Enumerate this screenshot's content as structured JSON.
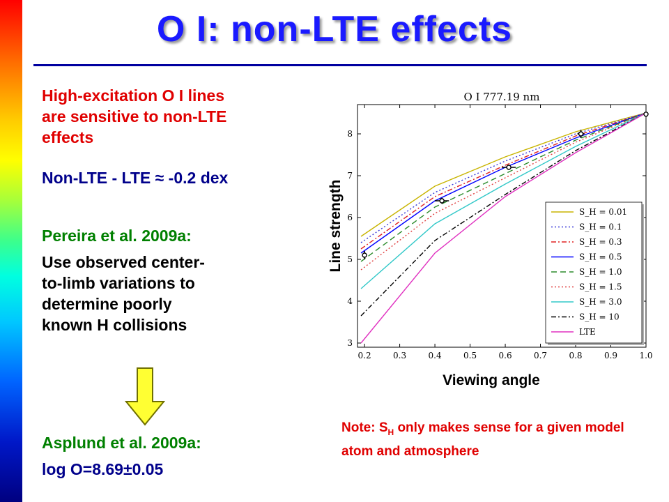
{
  "slide": {
    "title": "O I: non-LTE effects",
    "para1_lines": [
      "High-excitation O I lines",
      "are sensitive to non-LTE",
      "effects"
    ],
    "para1_result": "Non-LTE - LTE ≈ -0.2 dex",
    "ref1": "Pereira et al. 2009a:",
    "para2_lines": [
      "Use observed center-",
      "to-limb variations to",
      "determine poorly",
      "known H collisions"
    ],
    "ref2": "Asplund et al. 2009a:",
    "result": "log O=8.69±0.05",
    "note_prefix": "Note: S",
    "note_sub": "H",
    "note_rest": " only makes sense for a given model atom and atmosphere",
    "colors": {
      "title": "#1a1aff",
      "red_text": "#e00000",
      "blue_text": "#00008b",
      "green_text": "#008000",
      "arrow_fill": "#ffff33"
    }
  },
  "chart_data": {
    "type": "line",
    "title": "O I 777.19 nm",
    "xlabel": "Viewing angle",
    "ylabel": "Line strength",
    "xlim": [
      0.18,
      1.0
    ],
    "ylim": [
      2.9,
      8.7
    ],
    "xticks": [
      "0.2",
      "0.3",
      "0.4",
      "0.5",
      "0.6",
      "0.7",
      "0.8",
      "0.9",
      "1.0"
    ],
    "yticks": [
      "3",
      "4",
      "5",
      "6",
      "7",
      "8"
    ],
    "x": [
      0.19,
      0.4,
      0.6,
      0.8,
      1.0
    ],
    "series": [
      {
        "name": "S_H = 0.01",
        "color": "#c8b400",
        "dash": "solid",
        "values": [
          5.55,
          6.75,
          7.45,
          8.05,
          8.5
        ]
      },
      {
        "name": "S_H = 0.1",
        "color": "#3a3ad8",
        "dash": "dotted",
        "values": [
          5.4,
          6.6,
          7.35,
          8.0,
          8.5
        ]
      },
      {
        "name": "S_H = 0.3",
        "color": "#e02020",
        "dash": "dashdot",
        "values": [
          5.25,
          6.5,
          7.25,
          7.95,
          8.5
        ]
      },
      {
        "name": "S_H = 0.5",
        "color": "#0000ff",
        "dash": "solid",
        "values": [
          5.15,
          6.4,
          7.2,
          7.9,
          8.5
        ]
      },
      {
        "name": "S_H = 1.0",
        "color": "#2a8a2a",
        "dash": "dashed",
        "values": [
          4.95,
          6.25,
          7.05,
          7.85,
          8.5
        ]
      },
      {
        "name": "S_H = 1.5",
        "color": "#e04040",
        "dash": "dotted",
        "values": [
          4.75,
          6.1,
          6.95,
          7.8,
          8.5
        ]
      },
      {
        "name": "S_H = 3.0",
        "color": "#30c8c8",
        "dash": "solid",
        "values": [
          4.3,
          5.85,
          6.8,
          7.7,
          8.5
        ]
      },
      {
        "name": "S_H = 10",
        "color": "#000000",
        "dash": "dashdot",
        "values": [
          3.65,
          5.45,
          6.55,
          7.6,
          8.5
        ]
      },
      {
        "name": "LTE",
        "color": "#e030c0",
        "dash": "solid",
        "values": [
          3.0,
          5.15,
          6.5,
          7.55,
          8.5
        ]
      }
    ],
    "observations": [
      {
        "x": 0.2,
        "y": 5.1,
        "xerr": 0.0,
        "yerr": 0.1
      },
      {
        "x": 0.42,
        "y": 6.4,
        "xerr": 0.02,
        "yerr": 0.07
      },
      {
        "x": 0.61,
        "y": 7.2,
        "xerr": 0.02,
        "yerr": 0.06
      },
      {
        "x": 0.815,
        "y": 8.0,
        "xerr": 0.01,
        "yerr": 0.1
      },
      {
        "x": 1.0,
        "y": 8.47,
        "xerr": 0.0,
        "yerr": 0.04
      }
    ],
    "legend_placement": "lower-right",
    "grid": false
  }
}
